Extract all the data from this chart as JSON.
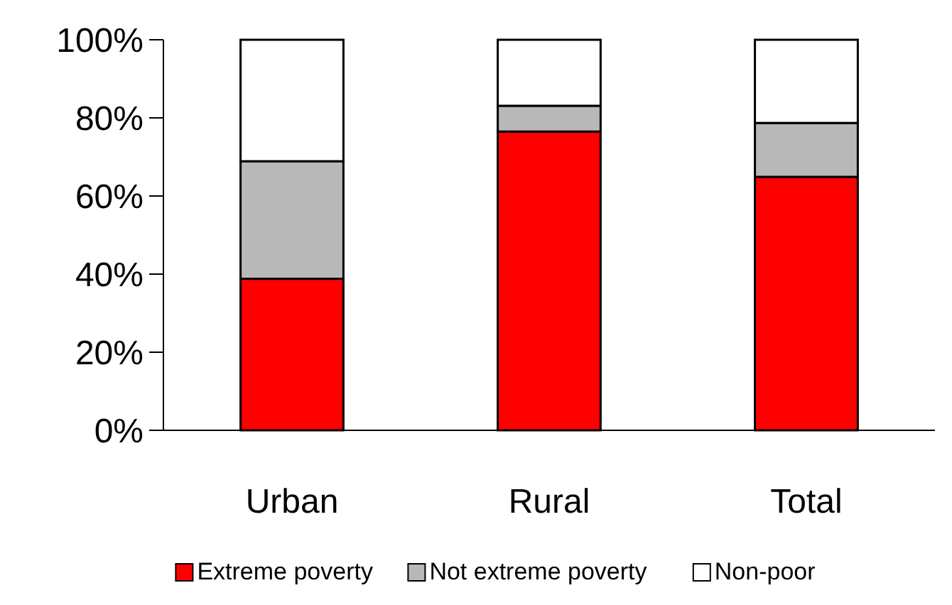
{
  "chart_data": {
    "type": "bar",
    "stacked": true,
    "categories": [
      "Urban",
      "Rural",
      "Total"
    ],
    "series": [
      {
        "name": "Extreme poverty",
        "color": "#ff0000",
        "values": [
          38.8,
          76.5,
          64.9
        ]
      },
      {
        "name": "Not extreme poverty",
        "color": "#b8b8b8",
        "values": [
          30.1,
          6.6,
          13.8
        ]
      },
      {
        "name": "Non-poor",
        "color": "#ffffff",
        "values": [
          31.1,
          16.9,
          21.3
        ]
      }
    ],
    "ylim": [
      0,
      100
    ],
    "yticks": [
      {
        "value": 0,
        "label": "0%"
      },
      {
        "value": 20,
        "label": "20%"
      },
      {
        "value": 40,
        "label": "40%"
      },
      {
        "value": 60,
        "label": "60%"
      },
      {
        "value": 80,
        "label": "80%"
      },
      {
        "value": 100,
        "label": "100%"
      }
    ],
    "grid": false,
    "legend": "bottom"
  }
}
